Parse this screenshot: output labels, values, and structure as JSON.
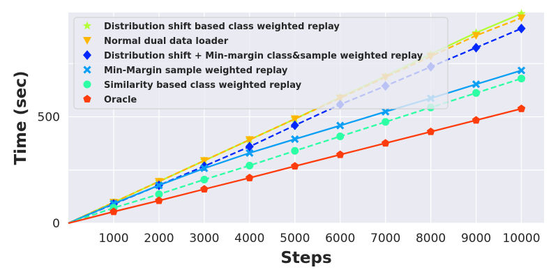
{
  "chart_data": {
    "type": "line",
    "title": "",
    "xlabel": "Steps",
    "ylabel": "Time (sec)",
    "xlim": [
      0,
      10500
    ],
    "ylim": [
      0,
      990
    ],
    "xticks": [
      1000,
      2000,
      3000,
      4000,
      5000,
      6000,
      7000,
      8000,
      9000,
      10000
    ],
    "yticks": [
      0,
      500
    ],
    "grid": true,
    "legend_position": "top-left",
    "x": [
      0,
      1000,
      2000,
      3000,
      4000,
      5000,
      6000,
      7000,
      8000,
      9000,
      10000
    ],
    "series": [
      {
        "name": "Distribution shift based class weighted replay",
        "color": "#b2ff36",
        "marker": "star",
        "line_style": "solid",
        "values": [
          0,
          98,
          196,
          294,
          392,
          490,
          592,
          692,
          795,
          895,
          985
        ]
      },
      {
        "name": "Normal dual data loader",
        "color": "#ffb600",
        "marker": "triangle-down",
        "line_style": "dashed",
        "values": [
          0,
          98,
          196,
          294,
          392,
          490,
          588,
          686,
          784,
          882,
          965
        ]
      },
      {
        "name": "Distribution shift + Min-margin class&sample weighted replay",
        "color": "#0028ff",
        "marker": "diamond",
        "line_style": "dashed",
        "values": [
          0,
          90,
          178,
          268,
          360,
          460,
          558,
          645,
          735,
          825,
          915
        ]
      },
      {
        "name": "Min-Margin sample weighted replay",
        "color": "#0a9ff5",
        "marker": "x",
        "line_style": "solid",
        "values": [
          0,
          92,
          178,
          258,
          330,
          395,
          459,
          524,
          587,
          653,
          718
        ]
      },
      {
        "name": "Similarity based class weighted replay",
        "color": "#2cffa4",
        "marker": "circle",
        "line_style": "dashed",
        "values": [
          0,
          72,
          136,
          205,
          271,
          340,
          408,
          476,
          544,
          612,
          680
        ]
      },
      {
        "name": "Oracle",
        "color": "#ff3c0b",
        "marker": "pentagon",
        "line_style": "solid",
        "values": [
          0,
          54,
          106,
          160,
          213,
          268,
          322,
          376,
          430,
          484,
          538
        ]
      }
    ]
  }
}
